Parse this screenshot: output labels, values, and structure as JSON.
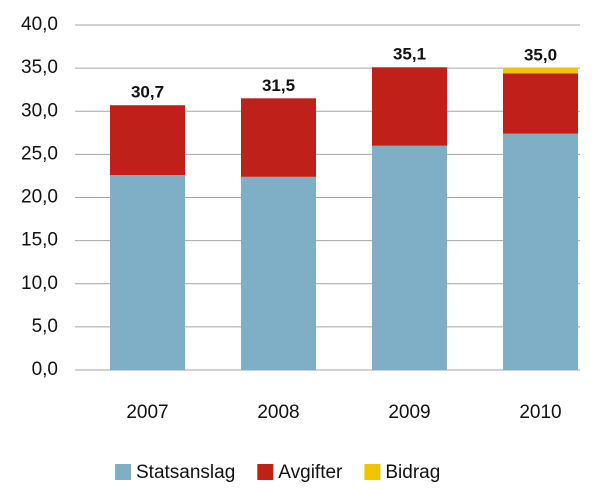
{
  "chart_data": {
    "type": "stacked_bar",
    "categories": [
      "2007",
      "2008",
      "2009",
      "2010"
    ],
    "series": [
      {
        "name": "Statsanslag",
        "color": "#7fafc6",
        "values": [
          22.6,
          22.4,
          26.0,
          27.4
        ]
      },
      {
        "name": "Avgifter",
        "color": "#c0201a",
        "values": [
          8.1,
          9.1,
          9.1,
          7.0
        ]
      },
      {
        "name": "Bidrag",
        "color": "#f2c500",
        "values": [
          0,
          0,
          0,
          0.6
        ]
      }
    ],
    "totals": [
      30.7,
      31.5,
      35.1,
      35.0
    ],
    "total_labels": [
      "30,7",
      "31,5",
      "35,1",
      "35,0"
    ],
    "ylim": [
      0,
      40
    ],
    "yticks": [
      {
        "value": 0,
        "label": "0,0"
      },
      {
        "value": 5,
        "label": "5,0"
      },
      {
        "value": 10,
        "label": "10,0"
      },
      {
        "value": 15,
        "label": "15,0"
      },
      {
        "value": 20,
        "label": "20,0"
      },
      {
        "value": 25,
        "label": "25,0"
      },
      {
        "value": 30,
        "label": "30,0"
      },
      {
        "value": 35,
        "label": "35,0"
      },
      {
        "value": 40,
        "label": "40,0"
      }
    ],
    "grid": true
  }
}
